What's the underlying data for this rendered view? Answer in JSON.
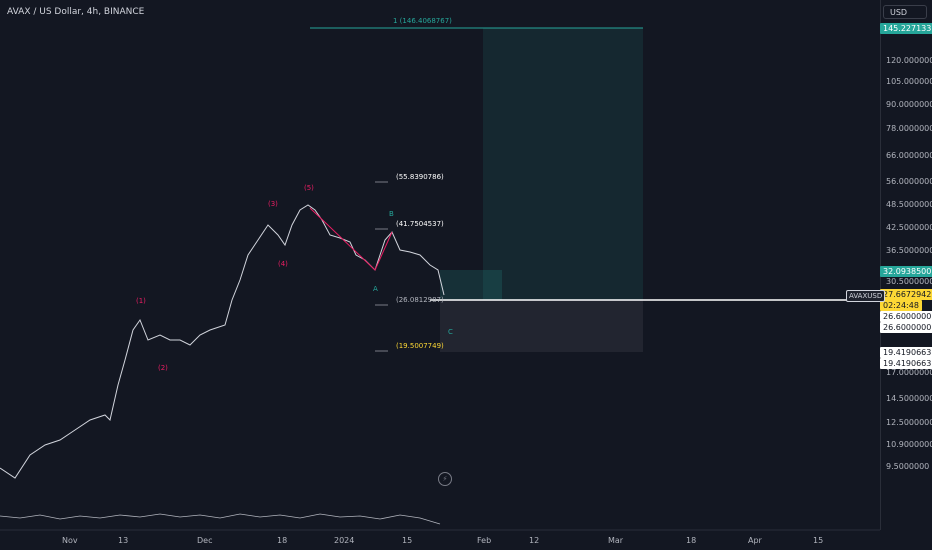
{
  "header": {
    "title": "AVAX / US Dollar, 4h, BINANCE",
    "currency_button": "USD"
  },
  "price_axis": {
    "ticks": [
      "120.0000000",
      "105.0000000",
      "90.0000000",
      "78.0000000",
      "66.0000000",
      "56.0000000",
      "48.5000000",
      "42.5000000",
      "36.5000000",
      "30.5000000",
      "17.0000000",
      "14.5000000",
      "12.5000000",
      "10.9000000",
      "9.5000000"
    ],
    "tag_top": "145.2271337",
    "tag_green": "32.0938500",
    "tag_last": "27.6672942",
    "tag_countdown": "02:24:48",
    "tag_level1": "26.6000000",
    "tag_level2": "26.6000000",
    "tag_low1": "19.4190663",
    "tag_low2": "19.4190663"
  },
  "symbol_tag": "AVAXUSD",
  "time_axis": [
    "Nov",
    "13",
    "Dec",
    "18",
    "2024",
    "15",
    "Feb",
    "12",
    "Mar",
    "18",
    "Apr",
    "15"
  ],
  "annotations": {
    "target_label": "1 (146.4068767)",
    "lvl1": "(55.8390786)",
    "lvl2": "(41.7504537)",
    "lvl3": "(26.0812987)",
    "lvl4": "(19.5007749)",
    "wave_labels": [
      "(1)",
      "(2)",
      "(3)",
      "(4)",
      "(5)"
    ],
    "corrective_labels": [
      "A",
      "B",
      "C"
    ]
  },
  "colors": {
    "background": "#131722",
    "bull": "#26a69a",
    "wave": "#e91e63",
    "last_price": "#fdd835"
  }
}
